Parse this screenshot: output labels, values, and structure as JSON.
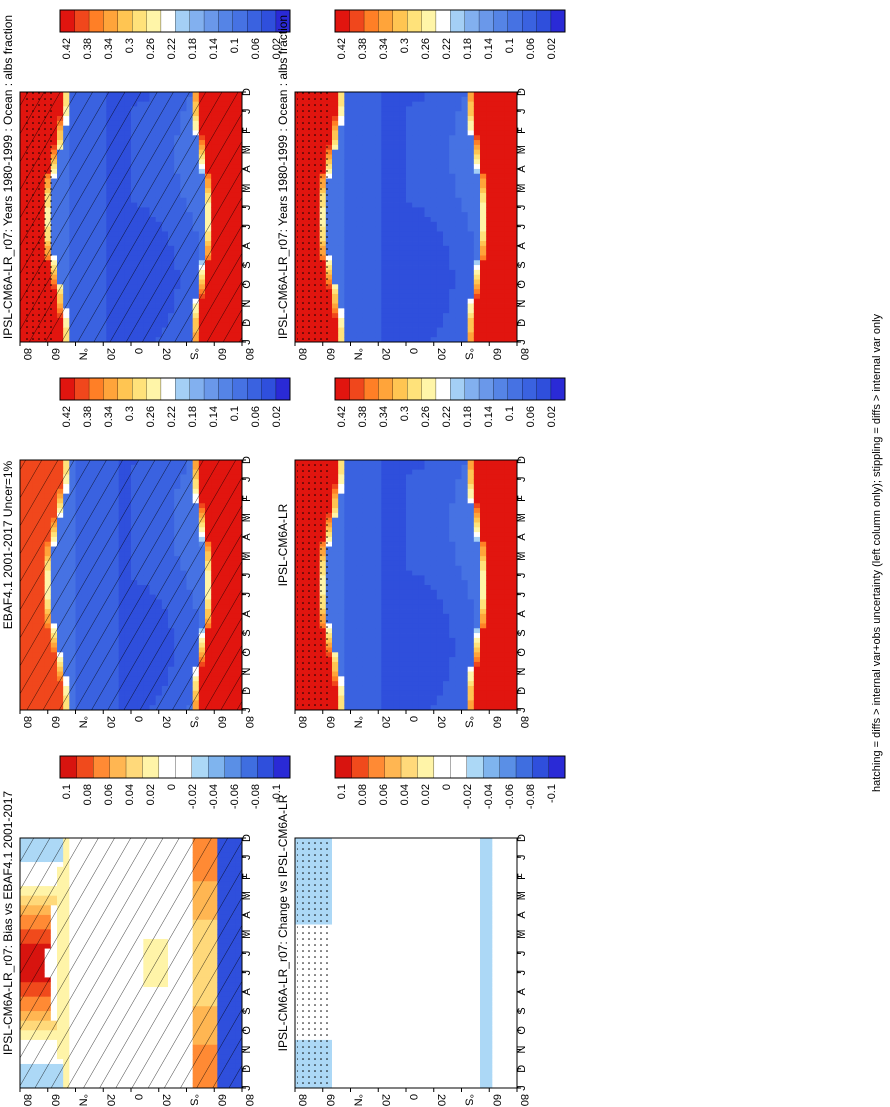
{
  "figure": {
    "footnote": "hatching = diffs > internal var+obs uncertainty (left column only); stippling = diffs > internal var only"
  },
  "colors": {
    "abs": [
      "#2a2ad6",
      "#2f4fdc",
      "#3a62e0",
      "#4672e3",
      "#5584e6",
      "#6a98ea",
      "#82b0ef",
      "#a4cff5",
      "#ffffff",
      "#fff5a8",
      "#ffe27a",
      "#ffc552",
      "#ffa43a",
      "#ff7f26",
      "#f0471c",
      "#e1150f"
    ],
    "diff": [
      "#2a2ad6",
      "#2f4fdc",
      "#3f6ee0",
      "#5a8fe6",
      "#7fb4ee",
      "#acd8f6",
      "#ffffff",
      "#ffffff",
      "#fff4a8",
      "#ffd97a",
      "#ffb652",
      "#ff8a34",
      "#f04a1c",
      "#d8140f"
    ]
  },
  "chart_data": [
    {
      "type": "heatmap",
      "title": "IPSL-CM6A-LR_r07: Years 1980-1999 : Ocean : albs fraction",
      "x_ticks": [
        "D",
        "J",
        "F",
        "M",
        "A",
        "M",
        "J",
        "J",
        "A",
        "S",
        "O",
        "N",
        "D",
        "J"
      ],
      "y_ticks": [
        "80",
        "60",
        "°N",
        "20",
        "0",
        "20",
        "°S",
        "60",
        "80"
      ],
      "colorbar_labels": [
        "0.42",
        "0.38",
        "0.34",
        "0.3",
        "0.26",
        "0.22",
        "0.18",
        "0.14",
        "0.1",
        "0.06",
        "0.02"
      ],
      "range": [
        0,
        0.44
      ],
      "overlay": "hatching and stippling"
    },
    {
      "type": "heatmap",
      "title": "IPSL-CM6A-LR_r07: Years 1980-1999 : Ocean : albs fraction",
      "x_ticks": [
        "D",
        "J",
        "F",
        "M",
        "A",
        "M",
        "J",
        "J",
        "A",
        "S",
        "O",
        "N",
        "D",
        "J"
      ],
      "y_ticks": [
        "80",
        "60",
        "°N",
        "20",
        "0",
        "20",
        "°S",
        "60",
        "80"
      ],
      "colorbar_labels": [
        "0.42",
        "0.38",
        "0.34",
        "0.3",
        "0.26",
        "0.22",
        "0.18",
        "0.14",
        "0.1",
        "0.06",
        "0.02"
      ],
      "range": [
        0,
        0.44
      ],
      "overlay": "stippling"
    },
    {
      "type": "heatmap",
      "title": "EBAF4.1 2001-2017 Uncer=1%",
      "x_ticks": [
        "D",
        "J",
        "F",
        "M",
        "A",
        "M",
        "J",
        "J",
        "A",
        "S",
        "O",
        "N",
        "D",
        "J"
      ],
      "y_ticks": [
        "80",
        "60",
        "°N",
        "20",
        "0",
        "20",
        "°S",
        "60",
        "80"
      ],
      "colorbar_labels": [
        "0.42",
        "0.38",
        "0.34",
        "0.3",
        "0.26",
        "0.22",
        "0.18",
        "0.14",
        "0.1",
        "0.06",
        "0.02"
      ],
      "range": [
        0,
        0.44
      ],
      "overlay": "hatching"
    },
    {
      "type": "heatmap",
      "title": "IPSL-CM6A-LR",
      "x_ticks": [
        "D",
        "J",
        "F",
        "M",
        "A",
        "M",
        "J",
        "J",
        "A",
        "S",
        "O",
        "N",
        "D",
        "J"
      ],
      "y_ticks": [
        "80",
        "60",
        "°N",
        "20",
        "0",
        "20",
        "°S",
        "60",
        "80"
      ],
      "colorbar_labels": [
        "0.42",
        "0.38",
        "0.34",
        "0.3",
        "0.26",
        "0.22",
        "0.18",
        "0.14",
        "0.1",
        "0.06",
        "0.02"
      ],
      "range": [
        0,
        0.44
      ],
      "overlay": "stippling"
    },
    {
      "type": "heatmap",
      "title": "IPSL-CM6A-LR_r07: Bias vs EBAF4.1 2001-2017",
      "x_ticks": [
        "D",
        "J",
        "F",
        "M",
        "A",
        "M",
        "J",
        "J",
        "A",
        "S",
        "O",
        "N",
        "D",
        "J"
      ],
      "y_ticks": [
        "80",
        "60",
        "°N",
        "20",
        "0",
        "20",
        "°S",
        "60",
        "80"
      ],
      "colorbar_labels": [
        "0.1",
        "0.08",
        "0.06",
        "0.04",
        "0.02",
        "0",
        "-0.02",
        "-0.04",
        "-0.06",
        "-0.08",
        "-0.1"
      ],
      "range": [
        -0.12,
        0.12
      ],
      "overlay": "hatching"
    },
    {
      "type": "heatmap",
      "title": "IPSL-CM6A-LR_r07: Change vs IPSL-CM6A-LR",
      "x_ticks": [
        "D",
        "J",
        "F",
        "M",
        "A",
        "M",
        "J",
        "J",
        "A",
        "S",
        "O",
        "N",
        "D",
        "J"
      ],
      "y_ticks": [
        "80",
        "60",
        "°N",
        "20",
        "0",
        "20",
        "°S",
        "60",
        "80"
      ],
      "colorbar_labels": [
        "0.1",
        "0.08",
        "0.06",
        "0.04",
        "0.02",
        "0",
        "-0.02",
        "-0.04",
        "-0.06",
        "-0.08",
        "-0.1"
      ],
      "range": [
        -0.12,
        0.12
      ],
      "overlay": "stippling"
    }
  ]
}
